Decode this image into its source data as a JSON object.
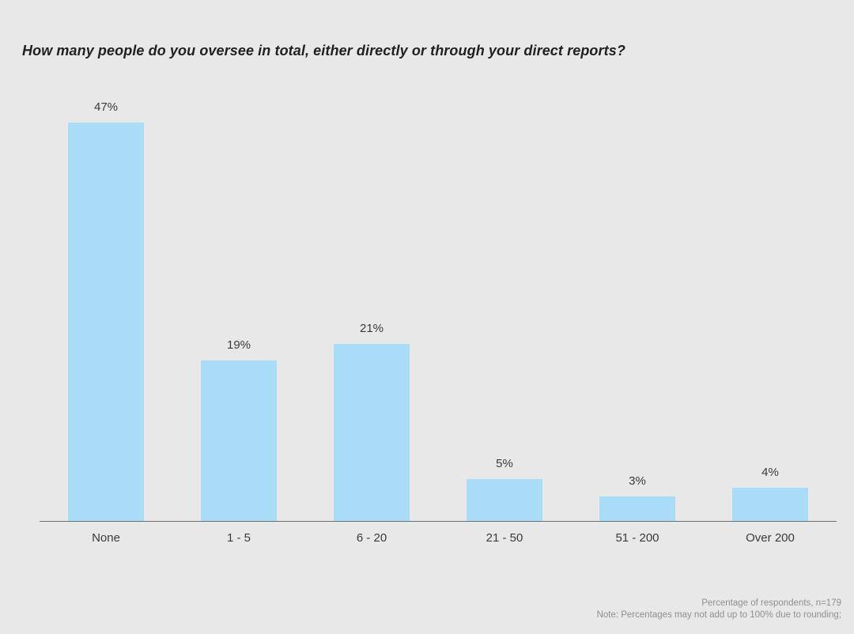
{
  "title": "How many people do you oversee in total, either directly or through your direct reports?",
  "chart_data": {
    "type": "bar",
    "title": "How many people do you oversee in total, either directly or through your direct reports?",
    "categories": [
      "None",
      "1 - 5",
      "6 - 20",
      "21 - 50",
      "51 - 200",
      "Over 200"
    ],
    "values": [
      47,
      19,
      21,
      5,
      3,
      4
    ],
    "value_labels": [
      "47%",
      "19%",
      "21%",
      "5%",
      "3%",
      "4%"
    ],
    "xlabel": "",
    "ylabel": "",
    "ylim": [
      0,
      50
    ],
    "grid": false,
    "legend": null,
    "bar_color": "#a8dcf7"
  },
  "footer": {
    "line1": "Percentage of respondents, n=179",
    "line2": "Note: Percentages may not add up to 100% due to rounding;"
  },
  "colors": {
    "background": "#e8e8e8",
    "bar": "#a8dcf7",
    "axis_line": "#6e6e6e",
    "title_text": "#1f2023",
    "label_text": "#3a3a3a",
    "footer_text": "#8f8f8f"
  }
}
